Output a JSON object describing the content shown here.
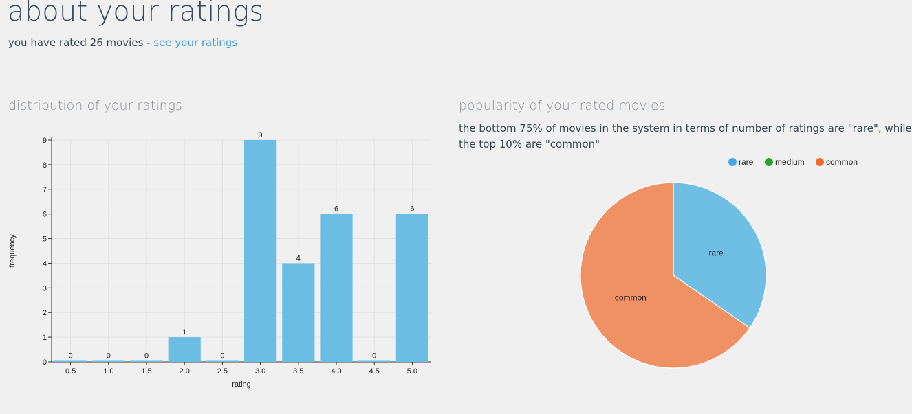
{
  "header": {
    "title": "about your ratings",
    "subtitle_prefix": "you have rated 26 movies - ",
    "ratings_link": "see your ratings"
  },
  "distribution": {
    "title": "distribution of your ratings"
  },
  "popularity": {
    "title": "popularity of your rated movies",
    "description_line1": "the bottom 75% of movies in the system in terms of number of ratings are \"rare\", while",
    "description_line2": "the top 10% are \"common\""
  },
  "chart_data": [
    {
      "type": "bar",
      "categories": [
        "0.5",
        "1.0",
        "1.5",
        "2.0",
        "2.5",
        "3.0",
        "3.5",
        "4.0",
        "4.5",
        "5.0"
      ],
      "values": [
        0,
        0,
        0,
        1,
        0,
        9,
        4,
        6,
        0,
        6
      ],
      "xlabel": "rating",
      "ylabel": "frequency",
      "ylim": [
        0,
        9
      ],
      "yticks": [
        0,
        1,
        2,
        3,
        4,
        5,
        6,
        7,
        8,
        9
      ],
      "grid": true,
      "color": "#6bbde4"
    },
    {
      "type": "pie",
      "labels": [
        "rare",
        "medium",
        "common"
      ],
      "values": [
        9,
        0,
        17
      ],
      "colors": [
        "#6fbfe5",
        "#2ca02c",
        "#f09163"
      ],
      "legend": [
        "rare",
        "medium",
        "common"
      ],
      "legend_colors": [
        "#4aa6e0",
        "#2ca02c",
        "#f26a2a"
      ],
      "legend_position": "top-right"
    }
  ]
}
